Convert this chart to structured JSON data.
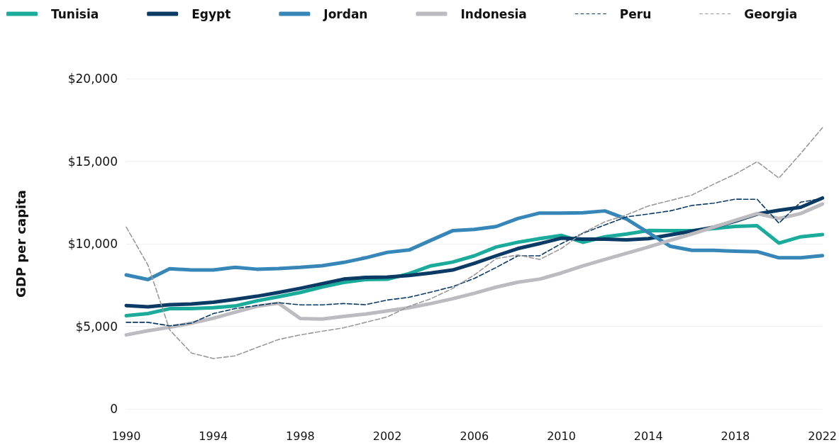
{
  "chart_data": {
    "type": "line",
    "ylabel": "GDP per capita",
    "x": [
      1990,
      1991,
      1992,
      1993,
      1994,
      1995,
      1996,
      1997,
      1998,
      1999,
      2000,
      2001,
      2002,
      2003,
      2004,
      2005,
      2006,
      2007,
      2008,
      2009,
      2010,
      2011,
      2012,
      2013,
      2014,
      2015,
      2016,
      2017,
      2018,
      2019,
      2020,
      2021,
      2022
    ],
    "series": [
      {
        "name": "Tunisia",
        "color": "#1aab9b",
        "line_style": "solid",
        "values": [
          5640,
          5770,
          6070,
          6070,
          6130,
          6230,
          6540,
          6790,
          7050,
          7380,
          7660,
          7830,
          7850,
          8190,
          8660,
          8890,
          9270,
          9800,
          10090,
          10310,
          10510,
          10090,
          10420,
          10590,
          10800,
          10790,
          10790,
          10920,
          11050,
          11090,
          10040,
          10420,
          10560
        ]
      },
      {
        "name": "Egypt",
        "color": "#0b3a64",
        "line_style": "solid",
        "values": [
          6260,
          6180,
          6310,
          6350,
          6460,
          6630,
          6820,
          7050,
          7300,
          7580,
          7860,
          7960,
          7980,
          8080,
          8230,
          8410,
          8810,
          9270,
          9710,
          10010,
          10340,
          10280,
          10280,
          10240,
          10310,
          10540,
          10760,
          11000,
          11370,
          11800,
          12030,
          12210,
          12770
        ]
      },
      {
        "name": "Jordan",
        "color": "#3686b8",
        "line_style": "solid",
        "values": [
          8110,
          7830,
          8490,
          8410,
          8410,
          8570,
          8460,
          8500,
          8570,
          8670,
          8870,
          9150,
          9480,
          9620,
          10210,
          10790,
          10870,
          11040,
          11530,
          11860,
          11860,
          11880,
          11990,
          11500,
          10670,
          9850,
          9600,
          9600,
          9550,
          9520,
          9150,
          9150,
          9280
        ]
      },
      {
        "name": "Indonesia",
        "color": "#bcbcc0",
        "line_style": "solid",
        "values": [
          4480,
          4730,
          4940,
          5190,
          5490,
          5850,
          6210,
          6400,
          5470,
          5440,
          5600,
          5740,
          5930,
          6130,
          6380,
          6670,
          7000,
          7370,
          7670,
          7860,
          8230,
          8660,
          9050,
          9430,
          9800,
          10210,
          10590,
          11000,
          11420,
          11830,
          11530,
          11830,
          12410
        ]
      },
      {
        "name": "Peru",
        "color": "#0b3a64",
        "line_style": "dashed",
        "values": [
          5240,
          5240,
          5030,
          5190,
          5770,
          6070,
          6260,
          6430,
          6300,
          6300,
          6380,
          6310,
          6590,
          6760,
          7070,
          7400,
          7900,
          8560,
          9270,
          9270,
          10010,
          10640,
          11140,
          11630,
          11800,
          11990,
          12320,
          12460,
          12700,
          12690,
          11250,
          12520,
          12740
        ]
      },
      {
        "name": "Georgia",
        "color": "#9a9a9a",
        "line_style": "dashed",
        "values": [
          11010,
          8700,
          4780,
          3380,
          3050,
          3210,
          3710,
          4200,
          4480,
          4700,
          4910,
          5240,
          5570,
          6210,
          6670,
          7290,
          8110,
          9100,
          9320,
          9050,
          9710,
          10670,
          11330,
          11750,
          12290,
          12620,
          12950,
          13610,
          14220,
          14970,
          13980,
          15460,
          17030
        ]
      }
    ],
    "xlim": [
      1990,
      2022
    ],
    "xticks": [
      1990,
      1994,
      1998,
      2002,
      2006,
      2010,
      2014,
      2018,
      2022
    ],
    "ylim": [
      0,
      20000
    ],
    "yticks": [
      0,
      {
        "value": 5000,
        "label": "$5,000"
      },
      {
        "value": 10000,
        "label": "$10,000"
      },
      {
        "value": 15000,
        "label": "$15,000"
      },
      {
        "value": 20000,
        "label": "$20,000"
      }
    ],
    "grid": "y",
    "legend": "top left",
    "marker": "none"
  }
}
